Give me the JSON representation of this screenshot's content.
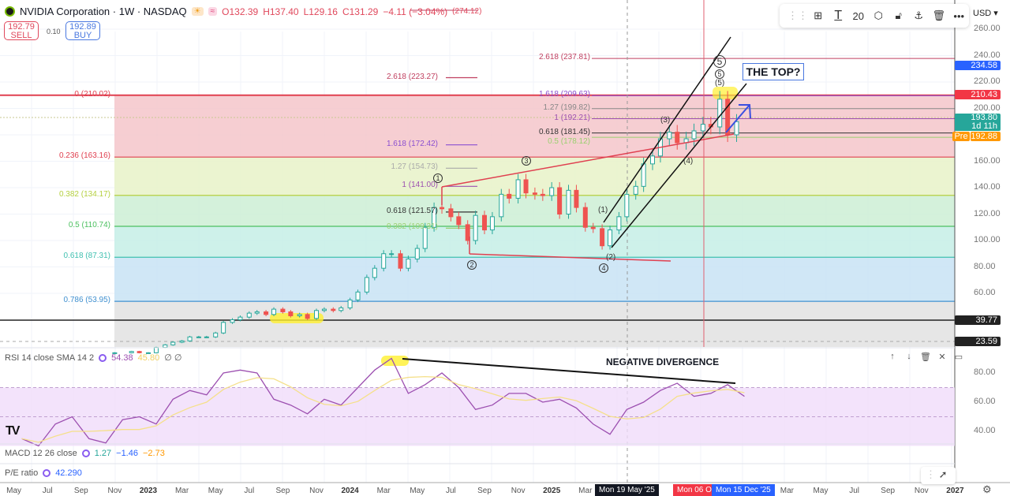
{
  "header": {
    "symbol": "NVIDIA Corporation · 1W · NASDAQ",
    "open": "O132.39",
    "high": "H137.40",
    "low": "L129.16",
    "close": "C131.29",
    "change": "−4.11 (−3.04%)",
    "extra": "(274.12)"
  },
  "trade": {
    "sell_price": "192.79",
    "sell_label": "SELL",
    "spread": "0.10",
    "buy_price": "192.89",
    "buy_label": "BUY"
  },
  "toolbar": {
    "icons": [
      "drag-handle",
      "template-icon",
      "text-icon",
      "font-size",
      "settings-icon",
      "lock-icon",
      "anchor-icon",
      "trash-icon",
      "more-icon"
    ],
    "font_size": "20"
  },
  "currency": "USD",
  "price_axis": [
    "260.00",
    "240.00",
    "220.00",
    "200.00",
    "160.00",
    "140.00",
    "120.00",
    "100.00",
    "80.00",
    "60.00"
  ],
  "price_badges": {
    "b1": "234.58",
    "b2": "210.43",
    "b3": "193.80",
    "b3b": "1d 11h",
    "pre": "Pre",
    "b4": "192.88",
    "b5": "39.77",
    "b6": "23.59"
  },
  "colors": {
    "up": "#26a69a",
    "down": "#ef5350",
    "rsi": "#9c4fb0",
    "sma": "#f5e08a",
    "blue": "#2962ff"
  },
  "fib_main": [
    {
      "label": "0 (210.02)",
      "p": 210.02
    },
    {
      "label": "0.236 (163.16)",
      "p": 163.16
    },
    {
      "label": "0.382 (134.17)",
      "p": 134.17
    },
    {
      "label": "0.5 (110.74)",
      "p": 110.74
    },
    {
      "label": "0.618 (87.31)",
      "p": 87.31
    },
    {
      "label": "0.786 (53.95)",
      "p": 53.95
    }
  ],
  "fib_ext1": [
    {
      "label": "2.618 (223.27)",
      "p": 223.27
    },
    {
      "label": "1.618 (172.42)",
      "p": 172.42
    },
    {
      "label": "1.27 (154.73)",
      "p": 154.73
    },
    {
      "label": "1 (141.00)",
      "p": 141.0
    },
    {
      "label": "0.618 (121.57)",
      "p": 121.57
    },
    {
      "label": "0.382 (109.31)",
      "p": 109.31
    }
  ],
  "fib_ext2": [
    {
      "label": "2.618 (237.81)",
      "p": 237.81
    },
    {
      "label": "1.618 (209.63)",
      "p": 209.63
    },
    {
      "label": "1.27 (199.82)",
      "p": 199.82
    },
    {
      "label": "1 (192.21)",
      "p": 192.21
    },
    {
      "label": "0.618 (181.45)",
      "p": 181.45
    },
    {
      "label": "0.5 (178.12)",
      "p": 178.12
    }
  ],
  "waves": {
    "c1": "1",
    "c2": "2",
    "c3": "3",
    "c4": "4",
    "c5": "5",
    "c5b": "5",
    "w1": "(1)",
    "w2": "(2)",
    "w3": "(3)",
    "w4": "(4)",
    "w5": "(5)"
  },
  "annotations": {
    "top": "THE TOP?",
    "divergence": "NEGATIVE DIVERGENCE"
  },
  "chart_data": {
    "type": "candlestick",
    "closes": [
      [
        "2022-11-01",
        15
      ],
      [
        "2022-12-01",
        16
      ],
      [
        "2022-12-15",
        15
      ],
      [
        "2023-01-01",
        15
      ],
      [
        "2023-01-15",
        19
      ],
      [
        "2023-02-01",
        21
      ],
      [
        "2023-02-15",
        23
      ],
      [
        "2023-03-01",
        24
      ],
      [
        "2023-03-15",
        27
      ],
      [
        "2023-04-01",
        27
      ],
      [
        "2023-04-15",
        27
      ],
      [
        "2023-05-01",
        30
      ],
      [
        "2023-05-15",
        38
      ],
      [
        "2023-06-01",
        40
      ],
      [
        "2023-06-15",
        42
      ],
      [
        "2023-07-01",
        45
      ],
      [
        "2023-07-15",
        46
      ],
      [
        "2023-08-01",
        44
      ],
      [
        "2023-08-15",
        48
      ],
      [
        "2023-09-01",
        46
      ],
      [
        "2023-09-15",
        43
      ],
      [
        "2023-10-01",
        44
      ],
      [
        "2023-10-15",
        41
      ],
      [
        "2023-11-01",
        47
      ],
      [
        "2023-11-15",
        48
      ],
      [
        "2023-12-01",
        47
      ],
      [
        "2023-12-15",
        49
      ],
      [
        "2024-01-01",
        55
      ],
      [
        "2024-01-15",
        61
      ],
      [
        "2024-02-01",
        72
      ],
      [
        "2024-02-15",
        79
      ],
      [
        "2024-03-01",
        90
      ],
      [
        "2024-03-15",
        90
      ],
      [
        "2024-04-01",
        79
      ],
      [
        "2024-04-15",
        86
      ],
      [
        "2024-05-01",
        94
      ],
      [
        "2024-05-15",
        110
      ],
      [
        "2024-06-01",
        125
      ],
      [
        "2024-06-15",
        124
      ],
      [
        "2024-07-01",
        118
      ],
      [
        "2024-07-15",
        112
      ],
      [
        "2024-08-01",
        100
      ],
      [
        "2024-08-15",
        119
      ],
      [
        "2024-09-01",
        108
      ],
      [
        "2024-09-15",
        118
      ],
      [
        "2024-10-01",
        135
      ],
      [
        "2024-10-15",
        132
      ],
      [
        "2024-11-01",
        146
      ],
      [
        "2024-11-15",
        136
      ],
      [
        "2024-12-01",
        135
      ],
      [
        "2024-12-15",
        134
      ],
      [
        "2025-01-01",
        140
      ],
      [
        "2025-01-15",
        120
      ],
      [
        "2025-02-01",
        138
      ],
      [
        "2025-02-15",
        125
      ],
      [
        "2025-03-01",
        110
      ],
      [
        "2025-03-15",
        109
      ],
      [
        "2025-04-01",
        96
      ],
      [
        "2025-04-15",
        108
      ],
      [
        "2025-05-01",
        118
      ],
      [
        "2025-05-15",
        135
      ],
      [
        "2025-06-01",
        141
      ],
      [
        "2025-06-15",
        158
      ],
      [
        "2025-07-01",
        164
      ],
      [
        "2025-07-15",
        177
      ],
      [
        "2025-08-01",
        182
      ],
      [
        "2025-08-15",
        174
      ],
      [
        "2025-09-01",
        177
      ],
      [
        "2025-09-15",
        183
      ],
      [
        "2025-10-01",
        188
      ],
      [
        "2025-10-15",
        186
      ],
      [
        "2025-11-01",
        207
      ],
      [
        "2025-11-15",
        180
      ],
      [
        "2025-12-01",
        190
      ]
    ],
    "rsi": [
      [
        "2022-05",
        35
      ],
      [
        "2022-06",
        30
      ],
      [
        "2022-07",
        45
      ],
      [
        "2022-08",
        50
      ],
      [
        "2022-09",
        35
      ],
      [
        "2022-10",
        32
      ],
      [
        "2022-11",
        48
      ],
      [
        "2022-12",
        50
      ],
      [
        "2023-01",
        45
      ],
      [
        "2023-02",
        62
      ],
      [
        "2023-03",
        68
      ],
      [
        "2023-04",
        65
      ],
      [
        "2023-05",
        80
      ],
      [
        "2023-06",
        82
      ],
      [
        "2023-07",
        80
      ],
      [
        "2023-08",
        62
      ],
      [
        "2023-09",
        58
      ],
      [
        "2023-10",
        52
      ],
      [
        "2023-11",
        62
      ],
      [
        "2023-12",
        58
      ],
      [
        "2024-01",
        70
      ],
      [
        "2024-02",
        82
      ],
      [
        "2024-03",
        90
      ],
      [
        "2024-04",
        66
      ],
      [
        "2024-05",
        72
      ],
      [
        "2024-06",
        80
      ],
      [
        "2024-07",
        70
      ],
      [
        "2024-08",
        55
      ],
      [
        "2024-09",
        58
      ],
      [
        "2024-10",
        66
      ],
      [
        "2024-11",
        66
      ],
      [
        "2024-12",
        60
      ],
      [
        "2025-01",
        62
      ],
      [
        "2025-02",
        56
      ],
      [
        "2025-03",
        45
      ],
      [
        "2025-04",
        38
      ],
      [
        "2025-05",
        55
      ],
      [
        "2025-06",
        60
      ],
      [
        "2025-07",
        68
      ],
      [
        "2025-08",
        73
      ],
      [
        "2025-09",
        64
      ],
      [
        "2025-10",
        66
      ],
      [
        "2025-11",
        72
      ],
      [
        "2025-12",
        64
      ]
    ],
    "price_range": [
      20,
      265
    ],
    "rsi_range": [
      30,
      95
    ]
  },
  "indicators": {
    "rsi_label": "RSI 14 close SMA 14 2",
    "rsi_val": "54.38",
    "rsi_sma": "45.80",
    "rsi_na": "∅ ∅",
    "macd_label": "MACD 12 26 close",
    "macd1": "1.27",
    "macd2": "−1.46",
    "macd3": "−2.73",
    "pe_label": "P/E ratio",
    "pe_val": "42.290"
  },
  "rsi_axis": [
    "80.00",
    "60.00",
    "40.00"
  ],
  "time_axis": [
    {
      "t": "May",
      "m": -8
    },
    {
      "t": "Jul",
      "m": -6
    },
    {
      "t": "Sep",
      "m": -4
    },
    {
      "t": "Nov",
      "m": -2
    },
    {
      "t": "2023",
      "m": 0,
      "y": true
    },
    {
      "t": "Mar",
      "m": 2
    },
    {
      "t": "May",
      "m": 4
    },
    {
      "t": "Jul",
      "m": 6
    },
    {
      "t": "Sep",
      "m": 8
    },
    {
      "t": "Nov",
      "m": 10
    },
    {
      "t": "2024",
      "m": 12,
      "y": true
    },
    {
      "t": "Mar",
      "m": 14
    },
    {
      "t": "May",
      "m": 16
    },
    {
      "t": "Jul",
      "m": 18
    },
    {
      "t": "Sep",
      "m": 20
    },
    {
      "t": "Nov",
      "m": 22
    },
    {
      "t": "2025",
      "m": 24,
      "y": true
    },
    {
      "t": "Mar",
      "m": 26
    },
    {
      "t": "Mar",
      "m": 38
    },
    {
      "t": "May",
      "m": 40
    },
    {
      "t": "Jul",
      "m": 42
    },
    {
      "t": "Sep",
      "m": 44
    },
    {
      "t": "Nov",
      "m": 46
    },
    {
      "t": "2027",
      "m": 48,
      "y": true
    }
  ],
  "time_badges": {
    "cursor": "Mon 19 May '25",
    "start": "Mon 06 O",
    "end": "Mon 15 Dec '25"
  }
}
